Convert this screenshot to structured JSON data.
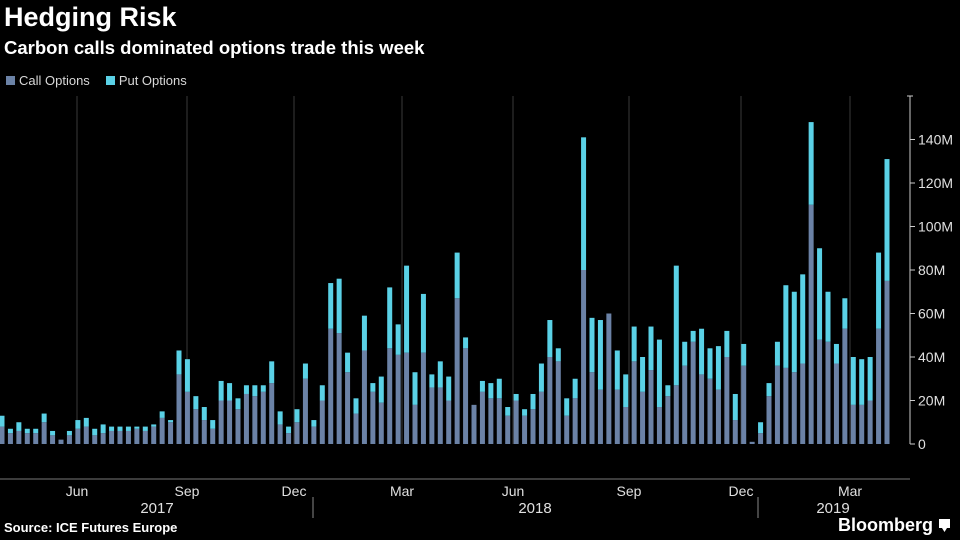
{
  "header": {
    "title": "Hedging Risk",
    "subtitle": "Carbon calls dominated options trade this week"
  },
  "footer": {
    "source": "Source: ICE Futures Europe",
    "brand": "Bloomberg",
    "brand_icon": "bloomberg-terminal-icon"
  },
  "colors": {
    "background": "#000000",
    "call": "#6b82a6",
    "put": "#5ad1e6",
    "grid": "#3a3a3a"
  },
  "chart_data": {
    "type": "bar",
    "stacked": true,
    "title": "Hedging Risk",
    "subtitle": "Carbon calls dominated options trade this week",
    "xlabel": "",
    "ylabel": "",
    "ylim": [
      0,
      160
    ],
    "y_unit": "M",
    "y_ticks": [
      0,
      20,
      40,
      60,
      80,
      100,
      120,
      140
    ],
    "y_tick_labels": [
      "0",
      "20M",
      "40M",
      "60M",
      "80M",
      "100M",
      "120M",
      "140M"
    ],
    "x_tick_labels": [
      "Jun",
      "Sep",
      "Dec",
      "Mar",
      "Jun",
      "Sep",
      "Dec",
      "Mar"
    ],
    "year_labels": [
      "2017",
      "2018",
      "2019"
    ],
    "legend": [
      "Call Options",
      "Put Options"
    ],
    "legend_position": "top-left",
    "grid": true,
    "series": [
      {
        "name": "Call Options",
        "values": [
          8,
          5,
          6,
          5,
          5,
          10,
          4,
          2,
          4,
          7,
          8,
          4,
          5,
          6,
          6,
          6,
          7,
          6,
          8,
          12,
          10,
          32,
          24,
          16,
          11,
          7,
          20,
          20,
          16,
          23,
          22,
          24,
          28,
          9,
          5,
          10,
          30,
          8,
          20,
          53,
          51,
          33,
          14,
          43,
          24,
          19,
          44,
          41,
          42,
          18,
          42,
          26,
          26,
          20,
          67,
          44,
          18,
          24,
          21,
          21,
          13,
          20,
          13,
          16,
          24,
          40,
          38,
          13,
          21,
          80,
          33,
          25,
          60,
          25,
          17,
          38,
          24,
          34,
          17,
          22,
          27,
          36,
          47,
          32,
          30,
          25,
          40,
          11,
          36,
          1,
          5,
          22,
          36,
          35,
          33,
          37,
          110,
          48,
          47,
          37,
          53,
          18,
          18,
          20,
          53,
          75
        ]
      },
      {
        "name": "Put Options",
        "values": [
          5,
          2,
          4,
          2,
          2,
          4,
          2,
          0,
          2,
          4,
          4,
          3,
          4,
          2,
          2,
          2,
          1,
          2,
          1,
          3,
          1,
          11,
          15,
          6,
          6,
          4,
          9,
          8,
          5,
          4,
          5,
          3,
          10,
          6,
          3,
          6,
          7,
          3,
          7,
          21,
          25,
          9,
          7,
          16,
          4,
          12,
          28,
          14,
          40,
          15,
          27,
          6,
          12,
          11,
          21,
          5,
          0,
          5,
          7,
          9,
          4,
          3,
          3,
          7,
          13,
          17,
          6,
          8,
          9,
          61,
          25,
          32,
          0,
          18,
          15,
          16,
          16,
          20,
          31,
          5,
          55,
          11,
          5,
          21,
          14,
          20,
          12,
          12,
          10,
          0,
          5,
          6,
          11,
          38,
          37,
          41,
          38,
          42,
          23,
          9,
          14,
          22,
          21,
          20,
          35,
          56
        ]
      }
    ]
  }
}
